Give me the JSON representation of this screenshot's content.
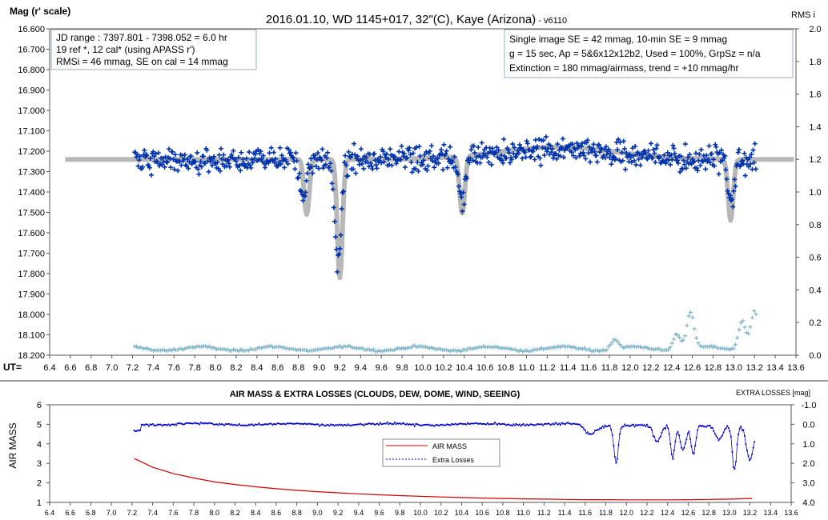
{
  "chart_data": [
    {
      "type": "scatter",
      "title": "2016.01.10, WD 1145+017, 32\"(C), Kaye (Arizona)",
      "title_suffix": " - v6110",
      "ylabel": "Mag (r' scale)",
      "y2label": "RMS i",
      "xlabel": "UT=",
      "xlim": [
        6.4,
        13.6
      ],
      "ylim": [
        16.6,
        18.2
      ],
      "y_inverted": true,
      "y2lim": [
        0.0,
        2.0
      ],
      "grid": false,
      "x_ticks": [
        "6.4",
        "6.6",
        "6.8",
        "7.0",
        "7.2",
        "7.4",
        "7.6",
        "7.8",
        "8.0",
        "8.2",
        "8.4",
        "8.6",
        "8.8",
        "9.0",
        "9.2",
        "9.4",
        "9.6",
        "9.8",
        "10.0",
        "10.2",
        "10.4",
        "10.6",
        "10.8",
        "11.0",
        "11.2",
        "11.4",
        "11.6",
        "11.8",
        "12.0",
        "12.2",
        "12.4",
        "12.6",
        "12.8",
        "13.0",
        "13.2",
        "13.4",
        "13.6"
      ],
      "y_ticks": [
        "16.600",
        "16.700",
        "16.800",
        "16.900",
        "17.000",
        "17.100",
        "17.200",
        "17.300",
        "17.400",
        "17.500",
        "17.600",
        "17.700",
        "17.800",
        "17.900",
        "18.000",
        "18.100",
        "18.200"
      ],
      "y2_ticks": [
        "2.0",
        "1.8",
        "1.6",
        "1.4",
        "1.2",
        "1.0",
        "0.8",
        "0.6",
        "0.4",
        "0.2",
        "0.0"
      ],
      "notes_left": [
        "JD range  : 7397.801 - 7398.052  = 6.0 hr",
        " 19 ref *, 12 cal* (using APASS r')",
        "RMSi = 46 mmag, SE on cal = 14 mmag"
      ],
      "notes_right": [
        "Single image SE = 42 mmag, 10-min SE = 9 mmag",
        "g = 15 sec, Ap = 5&6x12x12b2, Used = 100%, GrpSz = n/a",
        "Extinction = 180 mmag/airmass, trend = +10 mmag/hr"
      ],
      "series": [
        {
          "color": "#0033aa",
          "marker": "plus",
          "x_range": [
            7.22,
            13.22
          ],
          "baseline_mag": 17.24,
          "scatter_mag": 0.055,
          "dips": [
            {
              "x": 8.85,
              "depth": 0.2
            },
            {
              "x": 9.18,
              "depth": 0.5
            },
            {
              "x": 10.38,
              "depth": 0.22
            },
            {
              "x": 12.98,
              "depth": 0.2
            }
          ]
        },
        {
          "color": "#b8b8b8",
          "line": "model",
          "x_range": [
            6.55,
            13.58
          ],
          "baseline_mag": 17.24,
          "dips": [
            {
              "x": 8.88,
              "depth": 0.27
            },
            {
              "x": 9.2,
              "depth": 0.58
            },
            {
              "x": 10.38,
              "depth": 0.28
            },
            {
              "x": 12.97,
              "depth": 0.3
            }
          ]
        },
        {
          "color": "#7fb4c8",
          "marker": "plus",
          "axis": "y2",
          "x_range": [
            7.22,
            13.22
          ],
          "base": 0.04,
          "bumps": [
            {
              "x": 11.85,
              "h": 0.06
            },
            {
              "x": 12.45,
              "h": 0.1
            },
            {
              "x": 12.58,
              "h": 0.22
            },
            {
              "x": 13.08,
              "h": 0.18
            },
            {
              "x": 13.2,
              "h": 0.24
            }
          ]
        }
      ]
    },
    {
      "type": "line",
      "title": "AIR MASS & EXTRA LOSSES (CLOUDS, DEW, DOME, WIND, SEEING)",
      "ylabel": "AIR MASS",
      "y2label": "EXTRA LOSSES [mag]",
      "xlim": [
        6.4,
        13.6
      ],
      "ylim": [
        1,
        6
      ],
      "y2lim": [
        -1.0,
        4.0
      ],
      "y2_inverted": true,
      "x_ticks": [
        "6.4",
        "6.6",
        "6.8",
        "7.0",
        "7.2",
        "7.4",
        "7.6",
        "7.8",
        "8.0",
        "8.2",
        "8.4",
        "8.6",
        "8.8",
        "9.0",
        "9.2",
        "9.4",
        "9.6",
        "9.8",
        "10.0",
        "10.2",
        "10.4",
        "10.6",
        "10.8",
        "11.0",
        "11.2",
        "11.4",
        "11.6",
        "11.8",
        "12.0",
        "12.2",
        "12.4",
        "12.6",
        "12.8",
        "13.0",
        "13.2",
        "13.4",
        "13.6"
      ],
      "y_ticks": [
        "6",
        "5",
        "4",
        "3",
        "2",
        "1"
      ],
      "y2_ticks": [
        "-1.0",
        "0.0",
        "1.0",
        "2.0",
        "3.0",
        "4.0"
      ],
      "legend": [
        "AIR MASS",
        "Extra Losses"
      ],
      "legend_position": "center",
      "series": [
        {
          "name": "AIR MASS",
          "color": "#cc0000",
          "x": [
            7.22,
            7.4,
            7.6,
            7.8,
            8.0,
            8.2,
            8.4,
            8.6,
            8.8,
            9.0,
            9.2,
            9.4,
            9.6,
            9.8,
            10.0,
            10.2,
            10.4,
            10.6,
            10.8,
            11.0,
            11.2,
            11.4,
            11.6,
            11.8,
            12.0,
            12.2,
            12.4,
            12.6,
            12.8,
            13.0,
            13.22
          ],
          "y": [
            3.25,
            2.8,
            2.48,
            2.25,
            2.05,
            1.92,
            1.8,
            1.7,
            1.62,
            1.55,
            1.49,
            1.44,
            1.39,
            1.35,
            1.31,
            1.28,
            1.25,
            1.22,
            1.2,
            1.18,
            1.17,
            1.15,
            1.14,
            1.14,
            1.13,
            1.13,
            1.13,
            1.14,
            1.15,
            1.17,
            1.2
          ]
        },
        {
          "name": "Extra Losses",
          "color": "#0000cc",
          "axis": "y2",
          "marker": "dot",
          "x_range": [
            7.22,
            13.25
          ],
          "base": 0.0,
          "dips": [
            {
              "x": 11.65,
              "depth": 0.45,
              "w": 0.08
            },
            {
              "x": 11.9,
              "depth": 1.9,
              "w": 0.03
            },
            {
              "x": 12.3,
              "depth": 0.9,
              "w": 0.05
            },
            {
              "x": 12.45,
              "depth": 1.7,
              "w": 0.03
            },
            {
              "x": 12.55,
              "depth": 1.3,
              "w": 0.04
            },
            {
              "x": 12.65,
              "depth": 1.5,
              "w": 0.03
            },
            {
              "x": 12.9,
              "depth": 0.7,
              "w": 0.05
            },
            {
              "x": 13.05,
              "depth": 2.3,
              "w": 0.03
            },
            {
              "x": 13.2,
              "depth": 1.8,
              "w": 0.05
            }
          ]
        }
      ]
    }
  ]
}
